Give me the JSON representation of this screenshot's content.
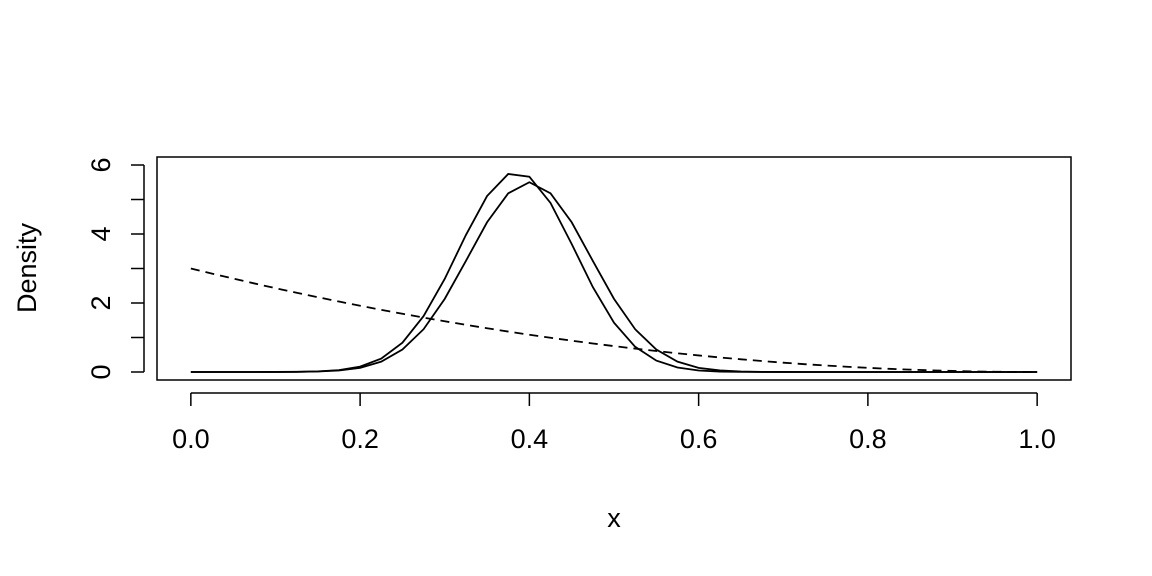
{
  "chart_data": {
    "type": "line",
    "xlabel": "x",
    "ylabel": "Density",
    "x": [
      0,
      0.025,
      0.05,
      0.075,
      0.1,
      0.125,
      0.15,
      0.175,
      0.2,
      0.225,
      0.25,
      0.275,
      0.3,
      0.325,
      0.35,
      0.375,
      0.4,
      0.425,
      0.45,
      0.475,
      0.5,
      0.525,
      0.55,
      0.575,
      0.6,
      0.625,
      0.65,
      0.675,
      0.7,
      0.725,
      0.75,
      0.775,
      0.8,
      0.825,
      0.85,
      0.875,
      0.9,
      0.925,
      0.95,
      0.975,
      1
    ],
    "series": [
      {
        "color": "#000000",
        "linestyle": "solid",
        "values": [
          0,
          0,
          0,
          0.0002,
          0.001,
          0.005,
          0.017,
          0.055,
          0.155,
          0.39,
          0.85,
          1.62,
          2.7,
          3.97,
          5.1,
          5.74,
          5.66,
          4.9,
          3.71,
          2.46,
          1.43,
          0.73,
          0.33,
          0.13,
          0.044,
          0.013,
          0.003,
          0.001,
          0,
          0,
          0,
          0,
          0,
          0,
          0,
          0,
          0,
          0,
          0,
          0,
          0
        ]
      },
      {
        "color": "#000000",
        "linestyle": "solid",
        "values": [
          0,
          0,
          0,
          0.0002,
          0.001,
          0.004,
          0.014,
          0.045,
          0.12,
          0.3,
          0.65,
          1.24,
          2.12,
          3.22,
          4.34,
          5.18,
          5.5,
          5.18,
          4.34,
          3.22,
          2.12,
          1.24,
          0.65,
          0.3,
          0.12,
          0.045,
          0.014,
          0.004,
          0.001,
          0,
          0,
          0,
          0,
          0,
          0,
          0,
          0,
          0,
          0,
          0,
          0
        ]
      },
      {
        "color": "#000000",
        "linestyle": "dashed",
        "values": [
          3,
          2.852,
          2.708,
          2.567,
          2.43,
          2.297,
          2.168,
          2.042,
          1.92,
          1.802,
          1.688,
          1.577,
          1.47,
          1.367,
          1.268,
          1.172,
          1.08,
          0.992,
          0.908,
          0.827,
          0.75,
          0.677,
          0.608,
          0.542,
          0.48,
          0.422,
          0.368,
          0.317,
          0.27,
          0.227,
          0.188,
          0.152,
          0.12,
          0.092,
          0.068,
          0.047,
          0.03,
          0.017,
          0.0075,
          0.0019,
          0
        ]
      }
    ],
    "xlim": [
      -0.04,
      1.04
    ],
    "xticks": [
      {
        "value": 0,
        "label": "0.0"
      },
      0.2,
      0.4,
      0.6,
      0.8,
      {
        "value": 1,
        "label": "1.0"
      }
    ],
    "ylim": [
      -0.232,
      6.232
    ],
    "yticks": [
      0,
      2,
      4,
      6
    ],
    "yminorticks": [
      1,
      3,
      5
    ]
  }
}
